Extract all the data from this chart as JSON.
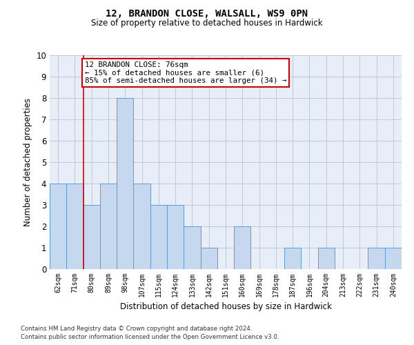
{
  "title1": "12, BRANDON CLOSE, WALSALL, WS9 0PN",
  "title2": "Size of property relative to detached houses in Hardwick",
  "xlabel": "Distribution of detached houses by size in Hardwick",
  "ylabel": "Number of detached properties",
  "categories": [
    "62sqm",
    "71sqm",
    "80sqm",
    "89sqm",
    "98sqm",
    "107sqm",
    "115sqm",
    "124sqm",
    "133sqm",
    "142sqm",
    "151sqm",
    "160sqm",
    "169sqm",
    "178sqm",
    "187sqm",
    "196sqm",
    "204sqm",
    "213sqm",
    "222sqm",
    "231sqm",
    "240sqm"
  ],
  "values": [
    4,
    4,
    3,
    4,
    8,
    4,
    3,
    3,
    2,
    1,
    0,
    2,
    0,
    0,
    1,
    0,
    1,
    0,
    0,
    1,
    1
  ],
  "bar_color": "#c5d8f0",
  "bar_edge_color": "#5b9bd5",
  "ylim": [
    0,
    10
  ],
  "yticks": [
    0,
    1,
    2,
    3,
    4,
    5,
    6,
    7,
    8,
    9,
    10
  ],
  "annotation_text": "12 BRANDON CLOSE: 76sqm\n← 15% of detached houses are smaller (6)\n85% of semi-detached houses are larger (34) →",
  "annotation_box_color": "#ffffff",
  "annotation_box_edge": "#cc0000",
  "vline_x_index": 1,
  "vline_color": "#cc0000",
  "grid_color": "#c0c8d8",
  "background_color": "#e8eef7",
  "footer1": "Contains HM Land Registry data © Crown copyright and database right 2024.",
  "footer2": "Contains public sector information licensed under the Open Government Licence v3.0."
}
